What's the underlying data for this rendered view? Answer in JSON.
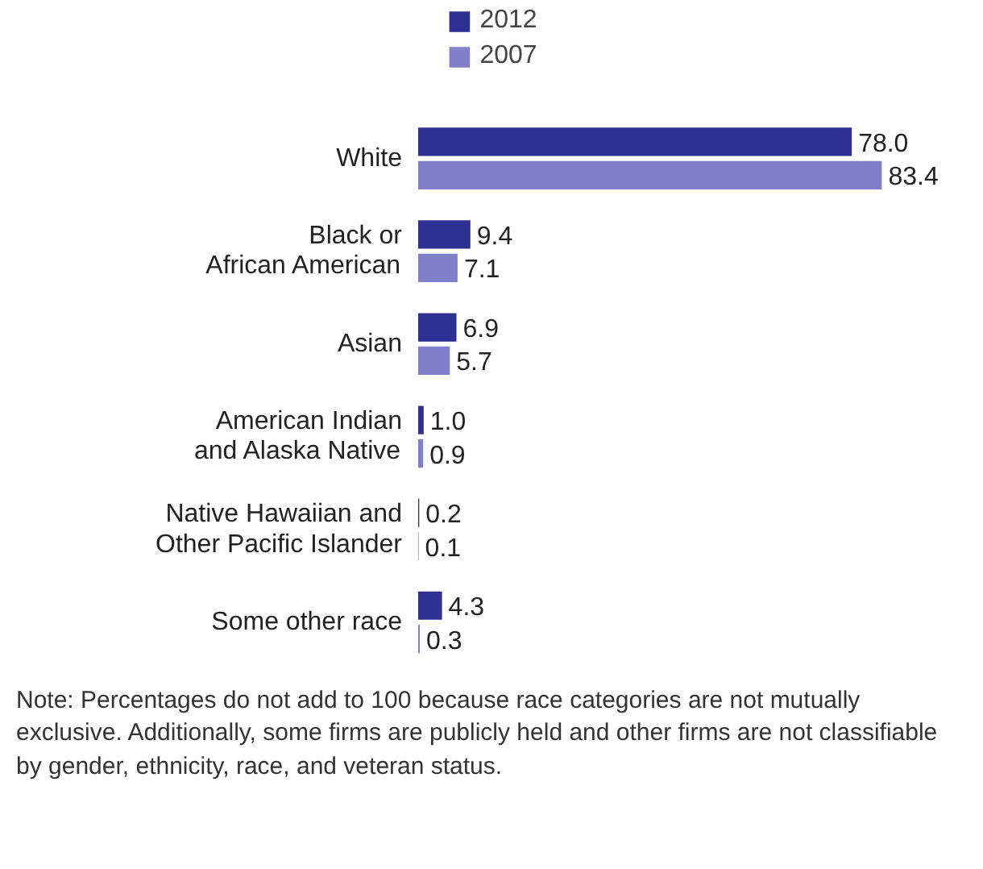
{
  "chart_data": {
    "type": "bar",
    "orientation": "horizontal",
    "categories": [
      "White",
      "Black or\nAfrican American",
      "Asian",
      "American Indian\nand Alaska Native",
      "Native Hawaiian and\nOther Pacific Islander",
      "Some other race"
    ],
    "series": [
      {
        "name": "2012",
        "color": "#2e3192",
        "values": [
          78.0,
          9.4,
          6.9,
          1.0,
          0.2,
          4.3
        ],
        "value_labels": [
          "78.0",
          "9.4",
          "6.9",
          "1.0",
          "0.2",
          "4.3"
        ]
      },
      {
        "name": "2007",
        "color": "#7f7fcc",
        "values": [
          83.4,
          7.1,
          5.7,
          0.9,
          0.1,
          0.3
        ],
        "value_labels": [
          "83.4",
          "7.1",
          "5.7",
          "0.9",
          "0.1",
          "0.3"
        ]
      }
    ],
    "legend": "top",
    "grid": false,
    "annotations": [
      "Note: Percentages do not add to 100 because race categories are not mutually exclusive. Additionally, some firms are publicly held and other firms are not classifiable by gender, ethnicity, race, and veteran status."
    ]
  }
}
